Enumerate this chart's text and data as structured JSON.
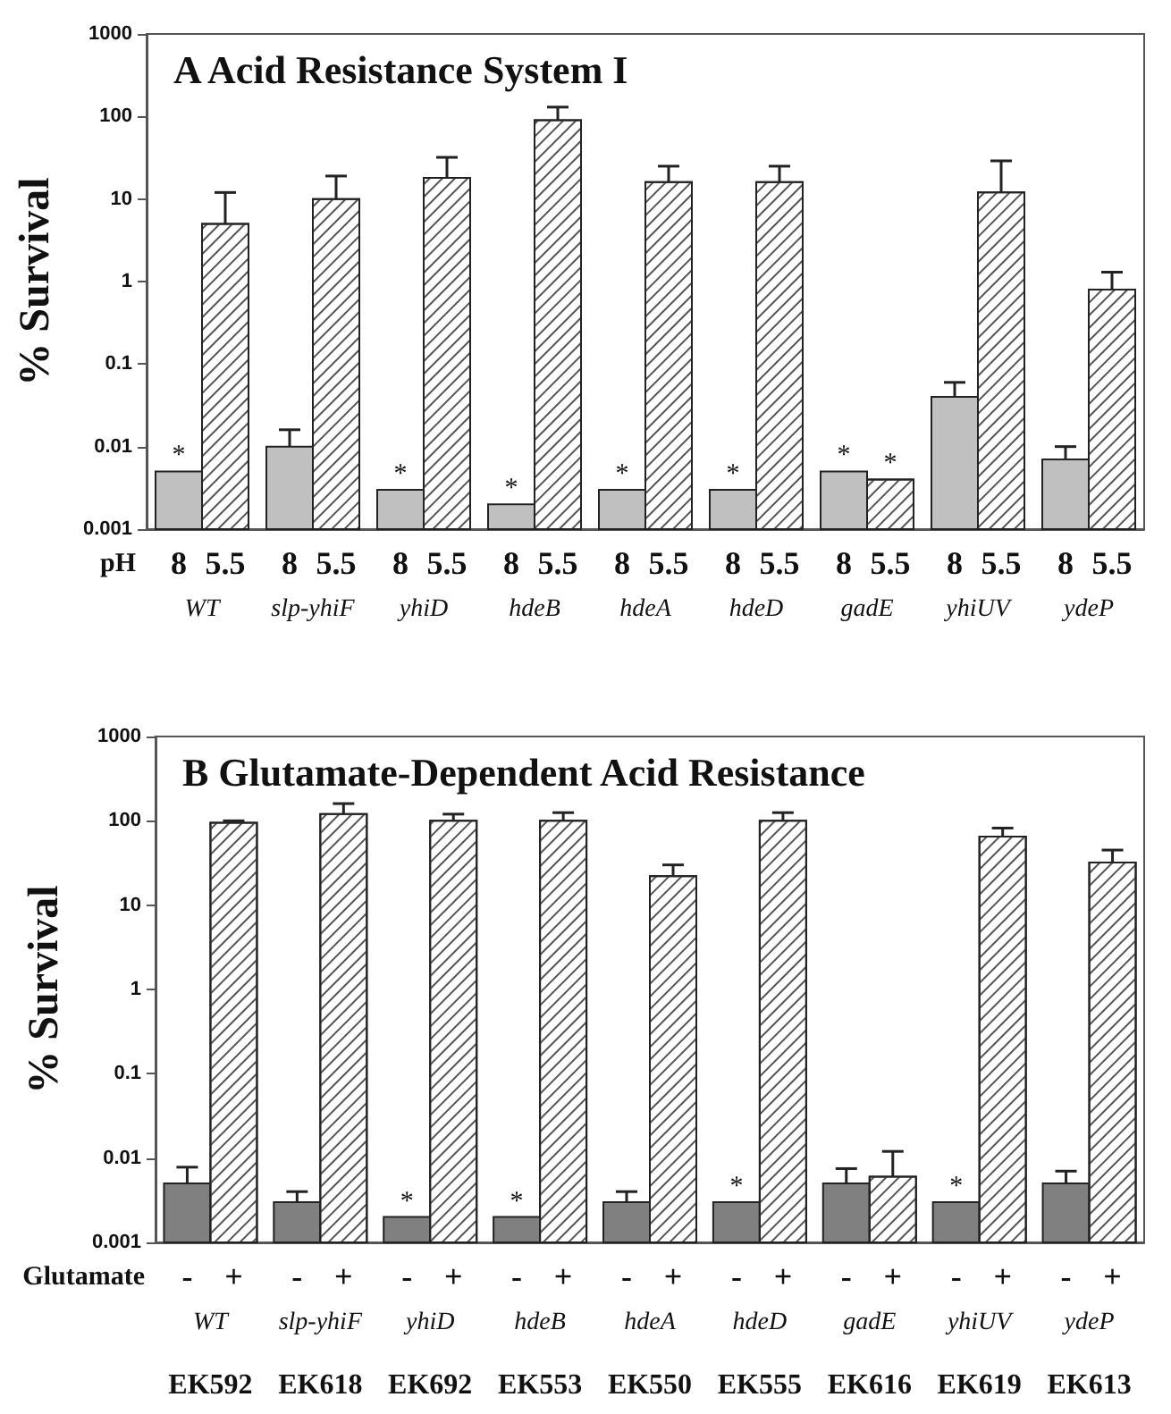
{
  "chart_data": [
    {
      "type": "bar",
      "title": "A Acid Resistance System I",
      "ylabel": "% Survival",
      "xlabel": "pH",
      "categories": [
        "WT",
        "slp-yhiF",
        "yhiD",
        "hdeB",
        "hdeA",
        "hdeD",
        "gadE",
        "yhiUV",
        "ydeP"
      ],
      "log": true,
      "ylim": [
        0.001,
        1000
      ],
      "yticks": [
        0.001,
        0.01,
        0.1,
        1,
        10,
        100,
        1000
      ],
      "series": [
        {
          "name": "8",
          "color": "#c0c0c0",
          "values": [
            0.005,
            0.01,
            0.003,
            0.002,
            0.003,
            0.003,
            0.005,
            0.04,
            0.007
          ],
          "errors": [
            null,
            [
              0.01,
              0.016
            ],
            null,
            null,
            null,
            null,
            null,
            [
              0.04,
              0.06
            ],
            [
              0.007,
              0.01
            ]
          ],
          "value_labels": [
            "*",
            null,
            "*",
            "*",
            "*",
            "*",
            "*",
            null,
            null
          ]
        },
        {
          "name": "5.5",
          "color": "#ffffff",
          "values": [
            5,
            10,
            18,
            90,
            16,
            16,
            0.004,
            12,
            0.8
          ],
          "errors": [
            [
              5,
              12
            ],
            [
              10,
              19
            ],
            [
              18,
              32
            ],
            [
              90,
              130
            ],
            [
              16,
              25
            ],
            [
              16,
              25
            ],
            null,
            [
              12,
              29
            ],
            [
              0.8,
              1.3
            ]
          ],
          "value_labels": [
            null,
            null,
            null,
            null,
            null,
            null,
            "*",
            null,
            null
          ]
        }
      ]
    },
    {
      "type": "bar",
      "title": "B Glutamate-Dependent Acid Resistance",
      "ylabel": "% Survival",
      "xlabel": "Glutamate",
      "categories": [
        "WT",
        "slp-yhiF",
        "yhiD",
        "hdeB",
        "hdeA",
        "hdeD",
        "gadE",
        "yhiUV",
        "ydeP"
      ],
      "annotations": [
        "EK592",
        "EK618",
        "EK692",
        "EK553",
        "EK550",
        "EK555",
        "EK616",
        "EK619",
        "EK613"
      ],
      "log": true,
      "ylim": [
        0.001,
        1000
      ],
      "yticks": [
        0.001,
        0.01,
        0.1,
        1,
        10,
        100,
        1000
      ],
      "series": [
        {
          "name": "-",
          "color": "#808080",
          "values": [
            0.005,
            0.003,
            0.002,
            0.002,
            0.003,
            0.003,
            0.005,
            0.003,
            0.005
          ],
          "errors": [
            [
              0.005,
              0.0078
            ],
            [
              0.003,
              0.004
            ],
            null,
            null,
            [
              0.003,
              0.004
            ],
            null,
            [
              0.005,
              0.0075
            ],
            null,
            [
              0.005,
              0.007
            ]
          ],
          "value_labels": [
            null,
            null,
            "*",
            "*",
            null,
            "*",
            null,
            "*",
            null
          ]
        },
        {
          "name": "+",
          "color": "#ffffff",
          "values": [
            95,
            120,
            100,
            100,
            22,
            100,
            0.006,
            65,
            32
          ],
          "errors": [
            [
              95,
              100
            ],
            [
              120,
              160
            ],
            [
              100,
              120
            ],
            [
              100,
              125
            ],
            [
              22,
              30
            ],
            [
              100,
              125
            ],
            [
              0.006,
              0.012
            ],
            [
              65,
              82
            ],
            [
              32,
              45
            ]
          ]
        }
      ]
    }
  ]
}
